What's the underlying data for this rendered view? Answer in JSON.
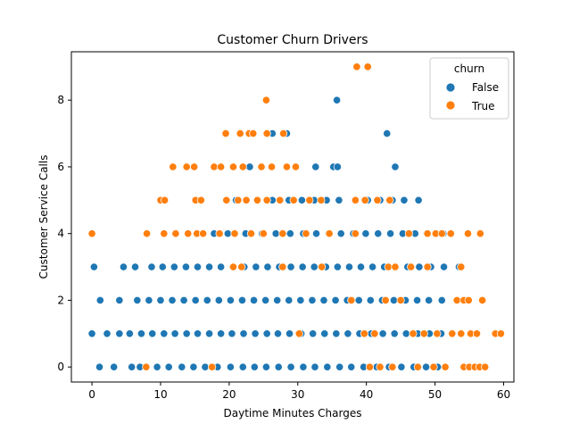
{
  "chart_data": {
    "type": "scatter",
    "title": "Customer Churn Drivers",
    "xlabel": "Daytime Minutes Charges",
    "ylabel": "Customer Service Calls",
    "xlim": [
      -3,
      61.5
    ],
    "ylim": [
      -0.45,
      9.45
    ],
    "xticks": [
      0,
      10,
      20,
      30,
      40,
      50,
      60
    ],
    "yticks": [
      0,
      2,
      4,
      6,
      8
    ],
    "grid": false,
    "legend": {
      "title": "churn",
      "placement": "top-right"
    },
    "series": [
      {
        "name": "False",
        "color": "#1f77b4",
        "points": [
          [
            1.1,
            0
          ],
          [
            3.2,
            0
          ],
          [
            5.8,
            0
          ],
          [
            7.0,
            0
          ],
          [
            9.5,
            0
          ],
          [
            11.2,
            0
          ],
          [
            13.1,
            0
          ],
          [
            14.8,
            0
          ],
          [
            16.5,
            0
          ],
          [
            18.3,
            0
          ],
          [
            20.2,
            0
          ],
          [
            22.0,
            0
          ],
          [
            23.7,
            0
          ],
          [
            25.4,
            0
          ],
          [
            27.2,
            0
          ],
          [
            29.0,
            0
          ],
          [
            30.8,
            0
          ],
          [
            32.5,
            0
          ],
          [
            34.3,
            0
          ],
          [
            36.1,
            0
          ],
          [
            37.8,
            0
          ],
          [
            39.6,
            0
          ],
          [
            41.5,
            0
          ],
          [
            43.3,
            0
          ],
          [
            45.1,
            0
          ],
          [
            46.9,
            0
          ],
          [
            48.7,
            0
          ],
          [
            50.4,
            0
          ],
          [
            0.0,
            1
          ],
          [
            2.2,
            1
          ],
          [
            4.0,
            1
          ],
          [
            5.5,
            1
          ],
          [
            7.2,
            1
          ],
          [
            8.8,
            1
          ],
          [
            10.5,
            1
          ],
          [
            12.1,
            1
          ],
          [
            13.8,
            1
          ],
          [
            15.4,
            1
          ],
          [
            17.1,
            1
          ],
          [
            18.8,
            1
          ],
          [
            20.4,
            1
          ],
          [
            22.1,
            1
          ],
          [
            23.8,
            1
          ],
          [
            25.5,
            1
          ],
          [
            27.1,
            1
          ],
          [
            28.8,
            1
          ],
          [
            30.5,
            1
          ],
          [
            32.2,
            1
          ],
          [
            33.9,
            1
          ],
          [
            35.6,
            1
          ],
          [
            37.3,
            1
          ],
          [
            39.0,
            1
          ],
          [
            40.7,
            1
          ],
          [
            42.4,
            1
          ],
          [
            44.1,
            1
          ],
          [
            45.8,
            1
          ],
          [
            47.5,
            1
          ],
          [
            49.2,
            1
          ],
          [
            50.9,
            1
          ],
          [
            1.2,
            2
          ],
          [
            4.0,
            2
          ],
          [
            6.6,
            2
          ],
          [
            8.3,
            2
          ],
          [
            10.0,
            2
          ],
          [
            11.7,
            2
          ],
          [
            13.4,
            2
          ],
          [
            15.1,
            2
          ],
          [
            16.8,
            2
          ],
          [
            18.5,
            2
          ],
          [
            20.2,
            2
          ],
          [
            21.9,
            2
          ],
          [
            23.6,
            2
          ],
          [
            25.3,
            2
          ],
          [
            27.0,
            2
          ],
          [
            28.7,
            2
          ],
          [
            30.4,
            2
          ],
          [
            32.1,
            2
          ],
          [
            33.8,
            2
          ],
          [
            35.5,
            2
          ],
          [
            37.2,
            2
          ],
          [
            38.9,
            2
          ],
          [
            40.6,
            2
          ],
          [
            42.3,
            2
          ],
          [
            44.0,
            2
          ],
          [
            45.7,
            2
          ],
          [
            47.4,
            2
          ],
          [
            49.1,
            2
          ],
          [
            51.0,
            2
          ],
          [
            0.3,
            3
          ],
          [
            4.6,
            3
          ],
          [
            6.3,
            3
          ],
          [
            8.7,
            3
          ],
          [
            10.3,
            3
          ],
          [
            12.0,
            3
          ],
          [
            13.7,
            3
          ],
          [
            15.4,
            3
          ],
          [
            17.1,
            3
          ],
          [
            18.8,
            3
          ],
          [
            20.5,
            3
          ],
          [
            22.2,
            3
          ],
          [
            23.9,
            3
          ],
          [
            25.6,
            3
          ],
          [
            27.3,
            3
          ],
          [
            29.0,
            3
          ],
          [
            30.7,
            3
          ],
          [
            32.4,
            3
          ],
          [
            34.1,
            3
          ],
          [
            35.8,
            3
          ],
          [
            37.5,
            3
          ],
          [
            39.2,
            3
          ],
          [
            40.9,
            3
          ],
          [
            42.6,
            3
          ],
          [
            44.3,
            3
          ],
          [
            46.0,
            3
          ],
          [
            47.7,
            3
          ],
          [
            49.4,
            3
          ],
          [
            51.3,
            3
          ],
          [
            53.5,
            3
          ],
          [
            17.8,
            4
          ],
          [
            19.8,
            4
          ],
          [
            22.4,
            4
          ],
          [
            24.8,
            4
          ],
          [
            26.8,
            4
          ],
          [
            28.9,
            4
          ],
          [
            30.8,
            4
          ],
          [
            32.7,
            4
          ],
          [
            34.5,
            4
          ],
          [
            36.3,
            4
          ],
          [
            38.1,
            4
          ],
          [
            39.9,
            4
          ],
          [
            41.7,
            4
          ],
          [
            43.5,
            4
          ],
          [
            45.3,
            4
          ],
          [
            47.1,
            4
          ],
          [
            48.8,
            4
          ],
          [
            51.2,
            4
          ],
          [
            21.0,
            5
          ],
          [
            26.3,
            5
          ],
          [
            28.7,
            5
          ],
          [
            30.6,
            5
          ],
          [
            32.4,
            5
          ],
          [
            34.2,
            5
          ],
          [
            36.0,
            5
          ],
          [
            40.2,
            5
          ],
          [
            42.0,
            5
          ],
          [
            43.8,
            5
          ],
          [
            45.5,
            5
          ],
          [
            47.6,
            5
          ],
          [
            23.0,
            6
          ],
          [
            32.6,
            6
          ],
          [
            35.2,
            6
          ],
          [
            35.8,
            6
          ],
          [
            44.2,
            6
          ],
          [
            26.3,
            7
          ],
          [
            28.4,
            7
          ],
          [
            43.0,
            7
          ],
          [
            35.7,
            8
          ]
        ]
      },
      {
        "name": "True",
        "color": "#ff7f0e",
        "points": [
          [
            7.9,
            0
          ],
          [
            17.5,
            0
          ],
          [
            40.5,
            0
          ],
          [
            42.0,
            0
          ],
          [
            43.8,
            0
          ],
          [
            47.5,
            0
          ],
          [
            49.8,
            0
          ],
          [
            51.5,
            0
          ],
          [
            54.2,
            0
          ],
          [
            55.0,
            0
          ],
          [
            55.8,
            0
          ],
          [
            56.5,
            0
          ],
          [
            57.3,
            0
          ],
          [
            30.2,
            1
          ],
          [
            39.7,
            1
          ],
          [
            41.2,
            1
          ],
          [
            46.8,
            1
          ],
          [
            48.4,
            1
          ],
          [
            50.3,
            1
          ],
          [
            52.5,
            1
          ],
          [
            53.8,
            1
          ],
          [
            55.2,
            1
          ],
          [
            56.1,
            1
          ],
          [
            58.8,
            1
          ],
          [
            59.6,
            1
          ],
          [
            37.8,
            2
          ],
          [
            42.8,
            2
          ],
          [
            45.0,
            2
          ],
          [
            53.2,
            2
          ],
          [
            54.2,
            2
          ],
          [
            54.9,
            2
          ],
          [
            56.9,
            2
          ],
          [
            20.6,
            3
          ],
          [
            21.8,
            3
          ],
          [
            27.8,
            3
          ],
          [
            33.5,
            3
          ],
          [
            43.2,
            3
          ],
          [
            44.2,
            3
          ],
          [
            46.5,
            3
          ],
          [
            48.9,
            3
          ],
          [
            53.8,
            3
          ],
          [
            0.0,
            4
          ],
          [
            8.0,
            4
          ],
          [
            10.5,
            4
          ],
          [
            12.2,
            4
          ],
          [
            14.0,
            4
          ],
          [
            15.3,
            4
          ],
          [
            16.2,
            4
          ],
          [
            18.6,
            4
          ],
          [
            20.8,
            4
          ],
          [
            23.2,
            4
          ],
          [
            25.0,
            4
          ],
          [
            27.8,
            4
          ],
          [
            31.2,
            4
          ],
          [
            34.6,
            4
          ],
          [
            38.4,
            4
          ],
          [
            46.2,
            4
          ],
          [
            48.9,
            4
          ],
          [
            50.1,
            4
          ],
          [
            51.0,
            4
          ],
          [
            52.3,
            4
          ],
          [
            54.8,
            4
          ],
          [
            56.6,
            4
          ],
          [
            10.0,
            5
          ],
          [
            10.6,
            5
          ],
          [
            15.1,
            5
          ],
          [
            15.9,
            5
          ],
          [
            19.6,
            5
          ],
          [
            21.3,
            5
          ],
          [
            22.5,
            5
          ],
          [
            24.1,
            5
          ],
          [
            25.5,
            5
          ],
          [
            27.4,
            5
          ],
          [
            29.4,
            5
          ],
          [
            31.7,
            5
          ],
          [
            33.4,
            5
          ],
          [
            38.4,
            5
          ],
          [
            39.8,
            5
          ],
          [
            41.6,
            5
          ],
          [
            43.4,
            5
          ],
          [
            11.8,
            6
          ],
          [
            13.8,
            6
          ],
          [
            14.9,
            6
          ],
          [
            17.8,
            6
          ],
          [
            18.8,
            6
          ],
          [
            20.6,
            6
          ],
          [
            22.0,
            6
          ],
          [
            24.7,
            6
          ],
          [
            26.2,
            6
          ],
          [
            28.4,
            6
          ],
          [
            29.7,
            6
          ],
          [
            19.5,
            7
          ],
          [
            21.6,
            7
          ],
          [
            22.9,
            7
          ],
          [
            23.5,
            7
          ],
          [
            25.5,
            7
          ],
          [
            27.9,
            7
          ],
          [
            25.4,
            8
          ],
          [
            38.6,
            9
          ],
          [
            40.2,
            9
          ]
        ]
      }
    ]
  }
}
